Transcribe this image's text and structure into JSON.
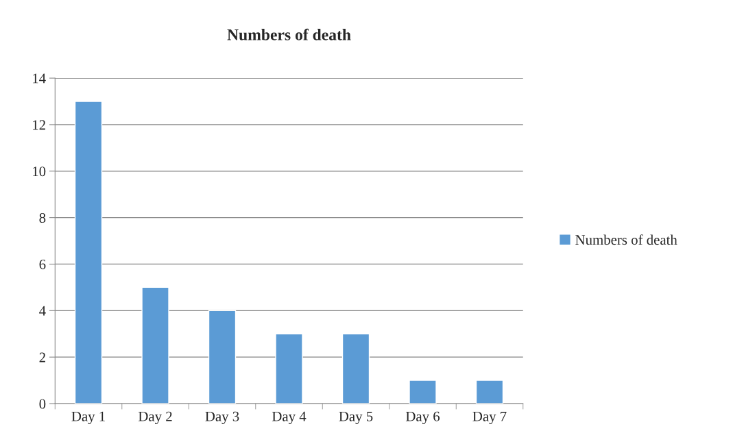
{
  "chart_data": {
    "type": "bar",
    "title": "Numbers of death",
    "categories": [
      "Day 1",
      "Day 2",
      "Day 3",
      "Day 4",
      "Day 5",
      "Day 6",
      "Day 7"
    ],
    "series": [
      {
        "name": "Numbers of death",
        "color": "#5b9bd5",
        "values": [
          13,
          5,
          4,
          3,
          3,
          1,
          1
        ]
      }
    ],
    "ylim": [
      0,
      14
    ],
    "yticks": [
      0,
      2,
      4,
      6,
      8,
      10,
      12,
      14
    ],
    "grid": "y",
    "legend": "right"
  }
}
